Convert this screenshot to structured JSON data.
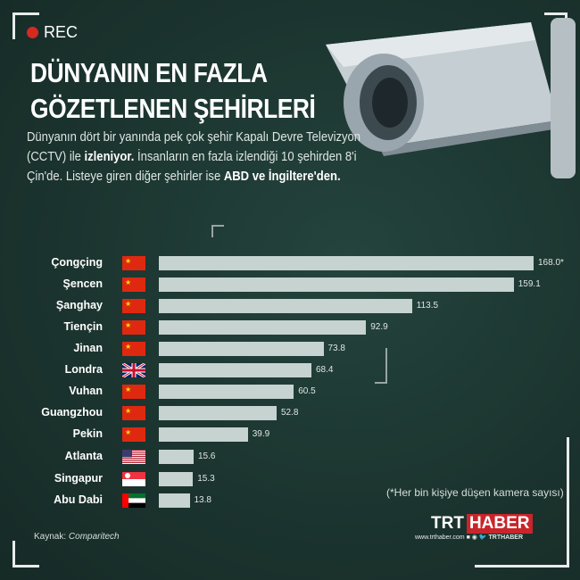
{
  "rec_label": "REC",
  "title_line1": "DÜNYANIN EN FAZLA",
  "title_line2": "GÖZETLENEN ŞEHİRLERİ",
  "description": {
    "p1": "Dünyanın dört bir yanında pek çok şehir Kapalı Devre Televizyon (CCTV) ile ",
    "b1": "izleniyor.",
    "p2": " İnsanların en fazla izlendiği 10 şehirden 8'i Çin'de. Listeye giren diğer şehirler ise ",
    "b2": "ABD ve İngiltere'den."
  },
  "chart_data": {
    "type": "bar",
    "orientation": "horizontal",
    "categories": [
      "Çongçing",
      "Şencen",
      "Şanghay",
      "Tiençin",
      "Jinan",
      "Londra",
      "Vuhan",
      "Guangzhou",
      "Pekin",
      "Atlanta",
      "Singapur",
      "Abu Dabi"
    ],
    "flags": [
      "china",
      "china",
      "china",
      "china",
      "china",
      "uk",
      "china",
      "china",
      "china",
      "usa",
      "singapore",
      "uae"
    ],
    "values": [
      168.0,
      159.1,
      113.5,
      92.9,
      73.8,
      68.4,
      60.5,
      52.8,
      39.9,
      15.6,
      15.3,
      13.8
    ],
    "value_labels": [
      "168.0*",
      "159.1",
      "113.5",
      "92.9",
      "73.8",
      "68.4",
      "60.5",
      "52.8",
      "39.9",
      "15.6",
      "15.3",
      "13.8"
    ],
    "bar_color": "#c6d3d0",
    "note": "(*Her bin kişiye düşen kamera sayısı)"
  },
  "source_label": "Kaynak:",
  "source": "Comparitech",
  "logo": {
    "trt": "TRT",
    "haber": "HABER",
    "url": "www.trthaber.com",
    "handle": "TRTHABER"
  },
  "colors": {
    "background": "#1b332e",
    "accent": "#c8252b"
  }
}
